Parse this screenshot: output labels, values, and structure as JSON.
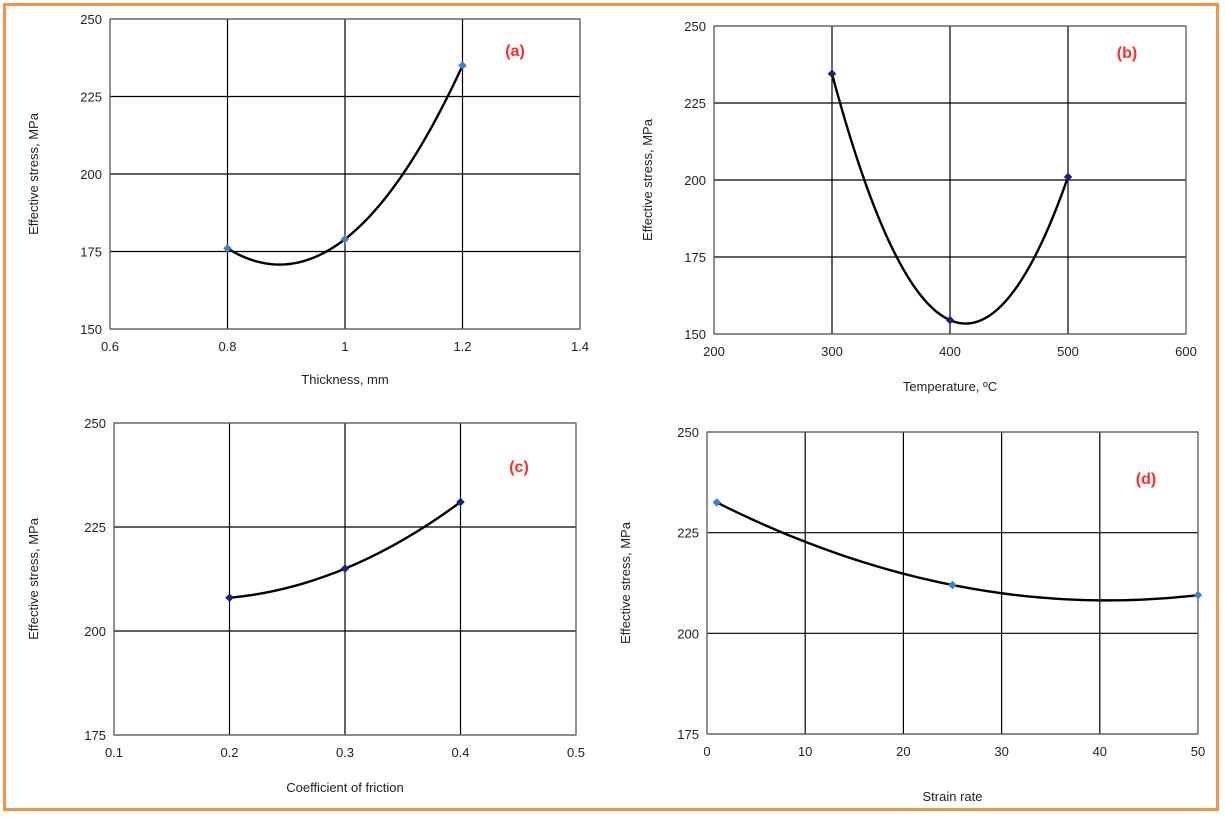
{
  "colors": {
    "frame": "#f4914a",
    "panel_label": "#ff2a2a",
    "curve": "#000000",
    "grid": "#000000",
    "marker_light": "#3f7fcf",
    "marker_dark": "#1a237e"
  },
  "chart_data": [
    {
      "type": "scatter",
      "panel_label": "(a)",
      "xlabel": "Thickness, mm",
      "ylabel": "Effective stress, MPa",
      "xlim": [
        0.6,
        1.4
      ],
      "ylim": [
        150,
        250
      ],
      "x_ticks": [
        0.6,
        0.8,
        1,
        1.2,
        1.4
      ],
      "x_tick_labels": [
        "0.6",
        "0.8",
        "1",
        "1.2",
        "1.4"
      ],
      "y_ticks": [
        150,
        175,
        200,
        225,
        250
      ],
      "y_tick_labels": [
        "150",
        "175",
        "200",
        "225",
        "250"
      ],
      "grid": "on",
      "series": [
        {
          "x": [
            0.8,
            1.0,
            1.2
          ],
          "y": [
            176,
            179,
            235
          ],
          "marker_color": "#3f7fcf",
          "trendline": "polynomial-2"
        }
      ]
    },
    {
      "type": "scatter",
      "panel_label": "(b)",
      "xlabel": "Temperature, ºC",
      "ylabel": "Effective stress, MPa",
      "xlim": [
        200,
        600
      ],
      "ylim": [
        150,
        250
      ],
      "x_ticks": [
        200,
        300,
        400,
        500,
        600
      ],
      "x_tick_labels": [
        "200",
        "300",
        "400",
        "500",
        "600"
      ],
      "y_ticks": [
        150,
        175,
        200,
        225,
        250
      ],
      "y_tick_labels": [
        "150",
        "175",
        "200",
        "225",
        "250"
      ],
      "grid": "on",
      "series": [
        {
          "x": [
            300,
            400,
            500
          ],
          "y": [
            234.5,
            154.5,
            201
          ],
          "marker_color": "#1a237e",
          "trendline": "polynomial-2"
        }
      ]
    },
    {
      "type": "scatter",
      "panel_label": "(c)",
      "xlabel": "Coefficient of friction",
      "ylabel": "Effective stress, MPa",
      "xlim": [
        0.1,
        0.5
      ],
      "ylim": [
        175,
        250
      ],
      "x_ticks": [
        0.1,
        0.2,
        0.3,
        0.4,
        0.5
      ],
      "x_tick_labels": [
        "0.1",
        "0.2",
        "0.3",
        "0.4",
        "0.5"
      ],
      "y_ticks": [
        175,
        200,
        225,
        250
      ],
      "y_tick_labels": [
        "175",
        "200",
        "225",
        "250"
      ],
      "grid": "on",
      "series": [
        {
          "x": [
            0.2,
            0.3,
            0.4
          ],
          "y": [
            208,
            215,
            231
          ],
          "marker_color": "#1a237e",
          "trendline": "polynomial-2"
        }
      ]
    },
    {
      "type": "scatter",
      "panel_label": "(d)",
      "xlabel": "Strain rate",
      "ylabel": "Effective stress, MPa",
      "xlim": [
        0,
        50
      ],
      "ylim": [
        175,
        250
      ],
      "x_ticks": [
        0,
        10,
        20,
        30,
        40,
        50
      ],
      "x_tick_labels": [
        "0",
        "10",
        "20",
        "30",
        "40",
        "50"
      ],
      "y_ticks": [
        175,
        200,
        225,
        250
      ],
      "y_tick_labels": [
        "175",
        "200",
        "225",
        "250"
      ],
      "grid": "on",
      "series": [
        {
          "x": [
            1,
            25,
            50
          ],
          "y": [
            232.5,
            212,
            209.5
          ],
          "marker_color": "#3f7fcf",
          "trendline": "polynomial-2"
        }
      ]
    }
  ]
}
